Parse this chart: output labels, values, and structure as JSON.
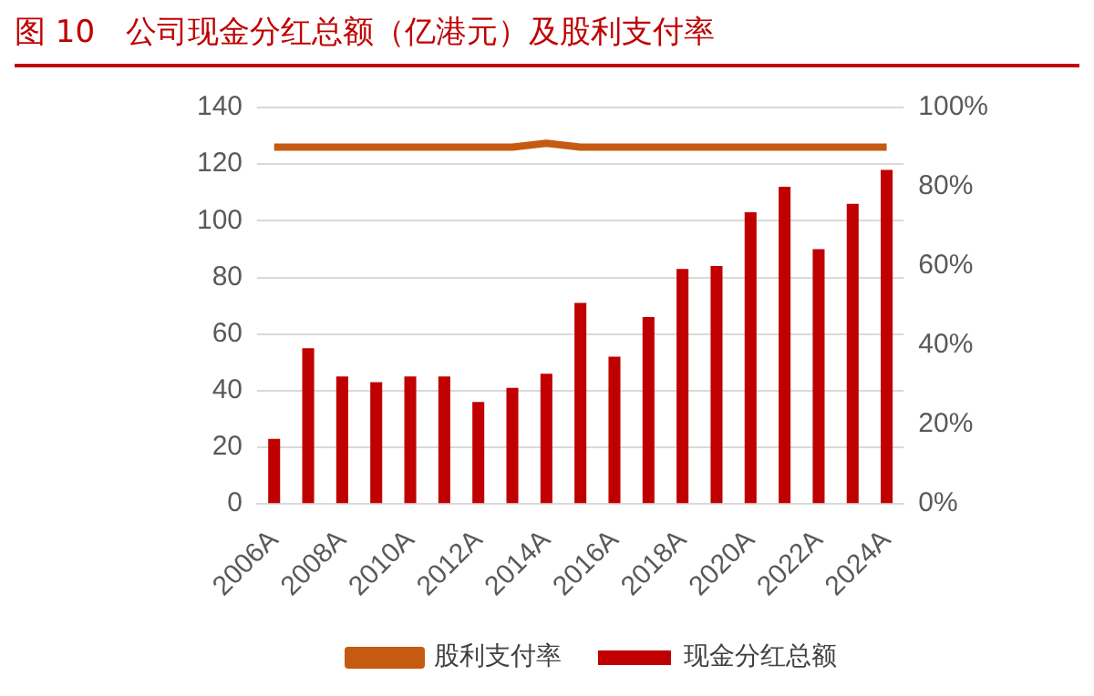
{
  "chart_data": {
    "type": "bar",
    "title": "图 10　公司现金分红总额（亿港元）及股利支付率",
    "categories": [
      "2006A",
      null,
      "2008A",
      null,
      "2010A",
      null,
      "2012A",
      null,
      "2014A",
      null,
      "2016A",
      null,
      "2018A",
      null,
      "2020A",
      null,
      "2022A",
      null,
      "2024A"
    ],
    "series": [
      {
        "name": "现金分红总额",
        "color": "#c00000",
        "values": [
          23,
          55,
          45,
          43,
          45,
          45,
          36,
          41,
          46,
          71,
          52,
          66,
          83,
          84,
          103,
          112,
          90,
          106,
          118
        ]
      },
      {
        "name": "股利支付率",
        "type": "line",
        "axis": "y2",
        "color": "#c55a11",
        "values": [
          90,
          90,
          90,
          90,
          90,
          90,
          90,
          90,
          91,
          90,
          90,
          90,
          90,
          90,
          90,
          90,
          90,
          90,
          90
        ]
      }
    ],
    "ylim": [
      0,
      140
    ],
    "yticks": [
      0,
      20,
      40,
      60,
      80,
      100,
      120,
      140
    ],
    "y2lim": [
      0,
      100
    ],
    "y2ticks": [
      {
        "value": 0,
        "label": "0%"
      },
      {
        "value": 20,
        "label": "20%"
      },
      {
        "value": 40,
        "label": "40%"
      },
      {
        "value": 60,
        "label": "60%"
      },
      {
        "value": 80,
        "label": "80%"
      },
      {
        "value": 100,
        "label": "100%"
      }
    ],
    "grid": "y",
    "legend": "bottom",
    "marker": "none"
  }
}
